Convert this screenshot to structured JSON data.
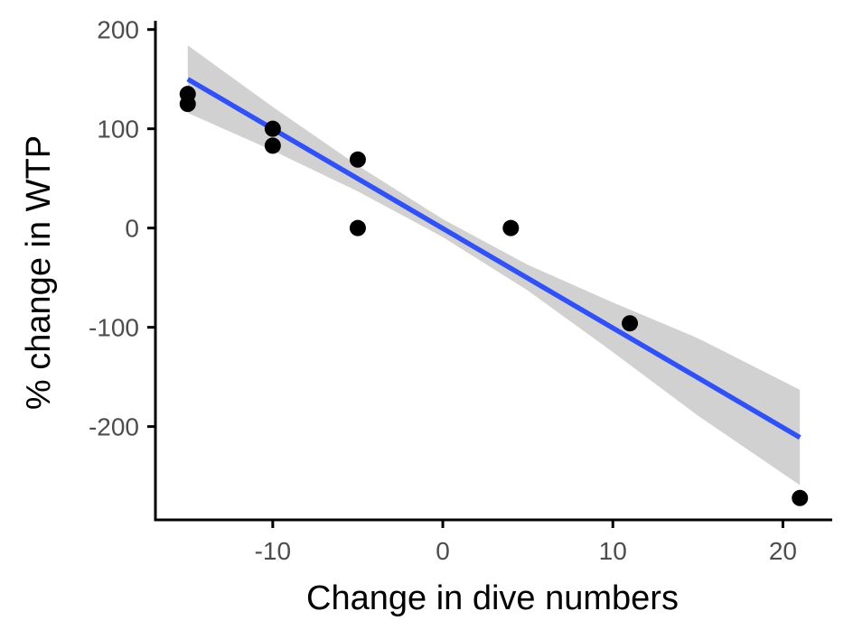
{
  "chart_data": {
    "type": "scatter",
    "title": "",
    "xlabel": "Change in dive numbers",
    "ylabel": "% change in WTP",
    "xlim": [
      -16.9,
      22.9
    ],
    "ylim": [
      -294,
      207
    ],
    "x_ticks": [
      -10,
      0,
      10,
      20
    ],
    "x_tick_labels": [
      "-10",
      "0",
      "10",
      "20"
    ],
    "y_ticks": [
      200,
      100,
      0,
      -100,
      -200
    ],
    "y_tick_labels": [
      "200",
      "100",
      "0",
      "-100",
      "-200"
    ],
    "grid": false,
    "legend": "none",
    "points": [
      {
        "x": -15,
        "y": 135
      },
      {
        "x": -15,
        "y": 125
      },
      {
        "x": -10,
        "y": 100
      },
      {
        "x": -10,
        "y": 83
      },
      {
        "x": -5,
        "y": 69
      },
      {
        "x": -5,
        "y": 0
      },
      {
        "x": 4,
        "y": 0
      },
      {
        "x": 11,
        "y": -96
      },
      {
        "x": 21,
        "y": -272
      }
    ],
    "fit_line": {
      "method": "linear regression",
      "x": [
        -15,
        21
      ],
      "y": [
        150,
        -211
      ]
    },
    "confidence_band": {
      "x": [
        -15,
        -10,
        -5,
        0,
        5,
        10,
        15,
        21
      ],
      "upper": [
        184,
        122,
        63,
        9,
        -37,
        -75,
        -111,
        -163
      ],
      "lower": [
        116,
        78,
        37,
        -9,
        -63,
        -125,
        -189,
        -259
      ]
    },
    "colors": {
      "points": "#000000",
      "fit_line": "#3050f8",
      "band": "#cccccc",
      "axis": "#000000",
      "tick_text": "#4d4d4d"
    }
  }
}
